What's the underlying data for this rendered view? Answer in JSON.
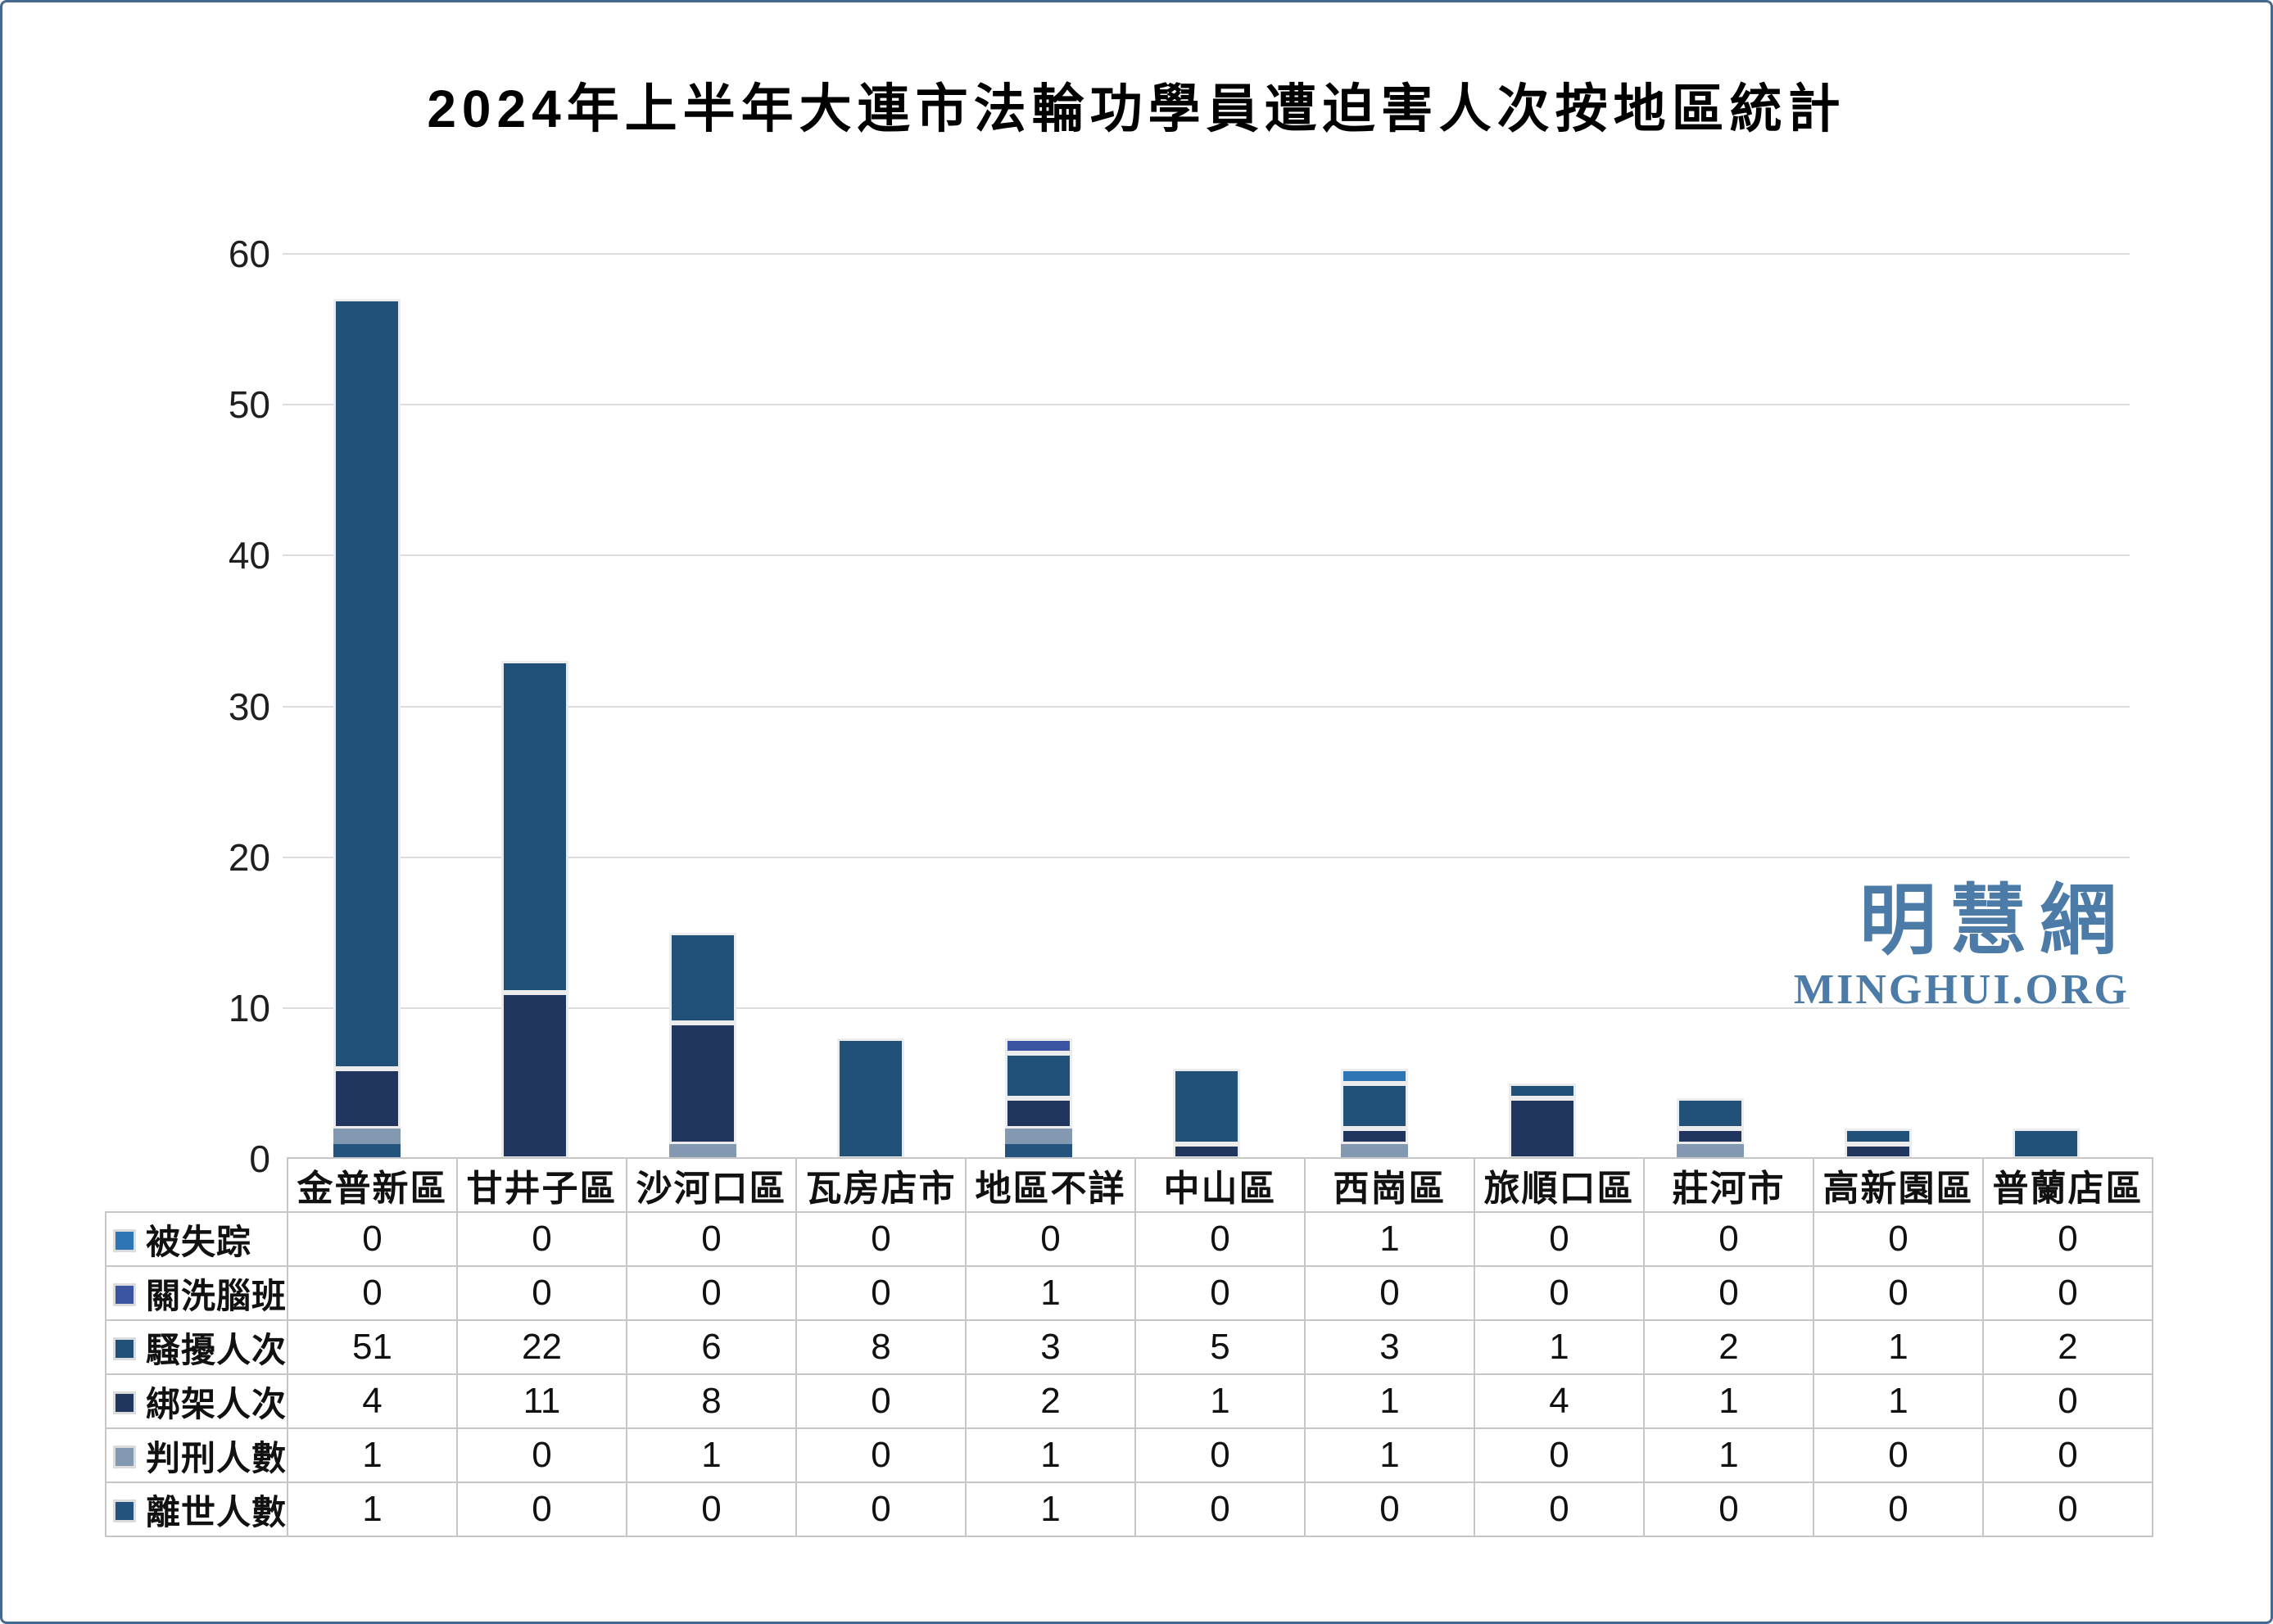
{
  "title": "2024年上半年大連市法輪功學員遭迫害人次按地區統計",
  "watermark": {
    "chinese": "明慧網",
    "english": "MINGHUI.ORG"
  },
  "chart_data": {
    "type": "bar",
    "stacked": true,
    "title": "2024年上半年大連市法輪功學員遭迫害人次按地區統計",
    "xlabel": "",
    "ylabel": "",
    "ylim": [
      0,
      60
    ],
    "yticks": [
      0,
      10,
      20,
      30,
      40,
      50,
      60
    ],
    "grid": "horizontal",
    "legend_position": "table-left-column",
    "categories": [
      "金普新區",
      "甘井子區",
      "沙河口區",
      "瓦房店市",
      "地區不詳",
      "中山區",
      "西崗區",
      "旅順口區",
      "莊河市",
      "高新園區",
      "普蘭店區"
    ],
    "series": [
      {
        "name": "被失踪",
        "color": "#2E75B6",
        "outlined": true,
        "values": [
          0,
          0,
          0,
          0,
          0,
          0,
          1,
          0,
          0,
          0,
          0
        ]
      },
      {
        "name": "關洗腦班",
        "color": "#3A54A1",
        "outlined": true,
        "values": [
          0,
          0,
          0,
          0,
          1,
          0,
          0,
          0,
          0,
          0,
          0
        ]
      },
      {
        "name": "騷擾人次",
        "color": "#215078",
        "outlined": true,
        "values": [
          51,
          22,
          6,
          8,
          3,
          5,
          3,
          1,
          2,
          1,
          2
        ]
      },
      {
        "name": "綁架人次",
        "color": "#20365E",
        "outlined": true,
        "values": [
          4,
          11,
          8,
          0,
          2,
          1,
          1,
          4,
          1,
          1,
          0
        ]
      },
      {
        "name": "判刑人數",
        "color": "#8399B1",
        "outlined": false,
        "values": [
          1,
          0,
          1,
          0,
          1,
          0,
          1,
          0,
          1,
          0,
          0
        ]
      },
      {
        "name": "離世人數",
        "color": "#24547E",
        "outlined": false,
        "values": [
          1,
          0,
          0,
          0,
          1,
          0,
          0,
          0,
          0,
          0,
          0
        ]
      }
    ],
    "stacking_order_bottom_to_top": [
      "離世人數",
      "判刑人數",
      "綁架人次",
      "騷擾人次",
      "關洗腦班",
      "被失踪"
    ]
  }
}
